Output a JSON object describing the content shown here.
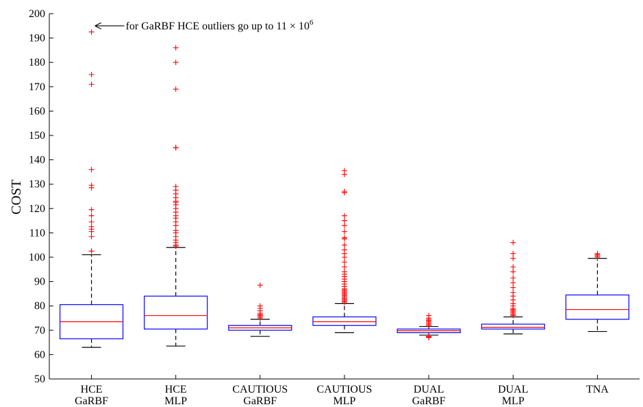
{
  "chart_data": {
    "type": "box",
    "ylabel": "COST",
    "ylim": [
      50,
      200
    ],
    "yticks": [
      50,
      60,
      70,
      80,
      90,
      100,
      110,
      120,
      130,
      140,
      150,
      160,
      170,
      180,
      190,
      200
    ],
    "annotation": {
      "text_prefix": "for GaRBF HCE outliers go up to 11 × 10",
      "text_superscript": "6",
      "target": {
        "category_index": 0,
        "value": 195
      }
    },
    "colors": {
      "box": "#0000ff",
      "median": "#ff0000",
      "outlier": "#ff0000",
      "whisker": "#000000"
    },
    "categories": [
      {
        "line1": "HCE",
        "line2": "GaRBF",
        "q1": 66.5,
        "median": 73.5,
        "q3": 80.5,
        "whisker_low": 63,
        "whisker_high": 101,
        "outliers": [
          102.5,
          102.5,
          108.5,
          110.5,
          111.5,
          112.5,
          114.5,
          117,
          119.5,
          128.5,
          129.5,
          136,
          171,
          175,
          192.5
        ]
      },
      {
        "line1": "HCE",
        "line2": "MLP",
        "q1": 70.5,
        "median": 76,
        "q3": 84,
        "whisker_low": 63.5,
        "whisker_high": 104,
        "outliers": [
          104.5,
          105,
          106,
          107,
          108.5,
          110,
          111,
          113,
          114.5,
          116,
          117,
          118.5,
          120,
          121.5,
          122.5,
          123,
          124.5,
          126,
          127.5,
          129,
          145,
          145,
          169,
          180,
          186
        ]
      },
      {
        "line1": "CAUTIOUS",
        "line2": "GaRBF",
        "q1": 70,
        "median": 71,
        "q3": 72,
        "whisker_low": 67.5,
        "whisker_high": 74.5,
        "outliers": [
          75,
          75.5,
          76,
          76.5,
          77,
          78,
          79,
          80,
          88.5
        ]
      },
      {
        "line1": "CAUTIOUS",
        "line2": "MLP",
        "q1": 72,
        "median": 73.5,
        "q3": 75.5,
        "whisker_low": 69,
        "whisker_high": 81,
        "outliers": [
          81.5,
          82,
          82.5,
          83,
          83.5,
          84,
          84.5,
          85,
          85.5,
          86,
          86.5,
          87,
          88,
          89,
          90,
          91,
          92,
          93,
          94,
          96,
          98,
          100,
          101.5,
          103,
          105,
          107.5,
          108,
          110.5,
          113,
          115,
          117,
          126.5,
          127,
          134,
          135.5
        ]
      },
      {
        "line1": "DUAL",
        "line2": "GaRBF",
        "q1": 69,
        "median": 69.8,
        "q3": 70.5,
        "whisker_low": 68,
        "whisker_high": 71.5,
        "outliers": [
          67,
          67.2,
          67.5,
          72,
          72.5,
          73,
          73.5,
          74,
          74.5,
          75,
          76
        ]
      },
      {
        "line1": "DUAL",
        "line2": "MLP",
        "q1": 70.5,
        "median": 71.2,
        "q3": 72.5,
        "whisker_low": 68.5,
        "whisker_high": 75.5,
        "outliers": [
          76,
          76.5,
          77,
          77.5,
          78,
          78.5,
          79,
          80,
          81,
          82.5,
          84,
          85.5,
          87.5,
          89.5,
          91.5,
          94,
          96,
          99.5,
          101.5,
          106
        ]
      },
      {
        "line1": "TNA",
        "line2": "",
        "q1": 74.5,
        "median": 78.5,
        "q3": 84.5,
        "whisker_low": 69.5,
        "whisker_high": 99.5,
        "outliers": [
          100,
          100.5,
          101,
          101.5
        ]
      }
    ]
  }
}
